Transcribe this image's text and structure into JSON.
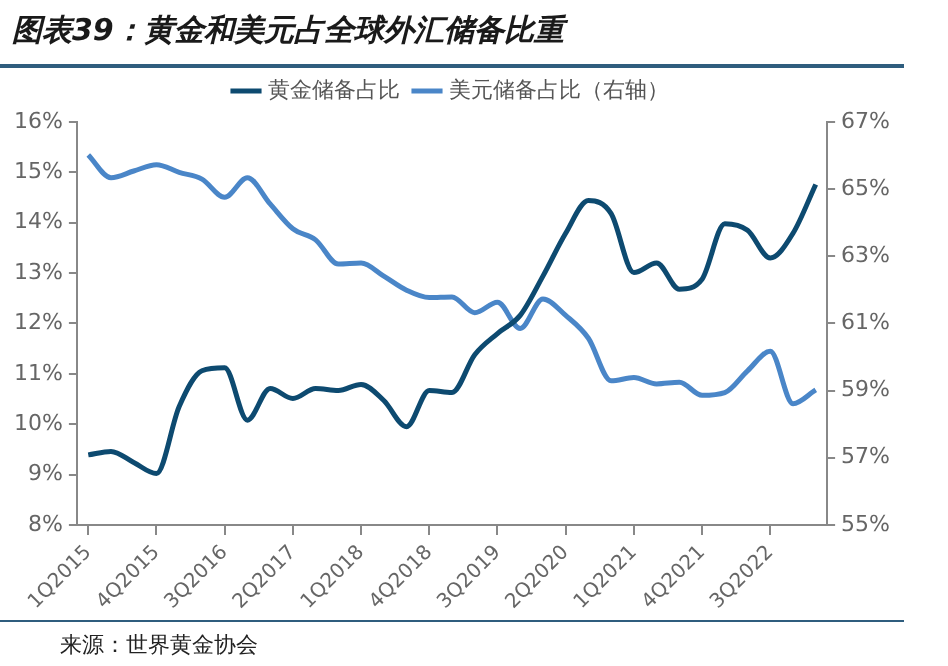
{
  "chart_data": {
    "type": "line",
    "title": "图表39：黄金和美元占全球外汇储备比重",
    "categories": [
      "1Q2015",
      null,
      null,
      "4Q2015",
      null,
      null,
      "3Q2016",
      null,
      null,
      "2Q2017",
      null,
      null,
      "1Q2018",
      null,
      null,
      "4Q2018",
      null,
      null,
      "3Q2019",
      null,
      null,
      "2Q2020",
      null,
      null,
      "1Q2021",
      null,
      null,
      "4Q2021",
      null,
      null,
      "3Q2022",
      null,
      null
    ],
    "series": [
      {
        "name": "黄金储备占比",
        "color": "#0d4a70",
        "values": [
          9.39,
          9.46,
          9.24,
          9.02,
          10.35,
          11.06,
          11.12,
          10.08,
          10.71,
          10.51,
          10.71,
          10.67,
          10.79,
          10.47,
          9.95,
          10.67,
          10.63,
          11.38,
          11.8,
          12.16,
          12.94,
          13.79,
          14.44,
          14.18,
          13.01,
          13.2,
          12.68,
          12.88,
          13.98,
          13.85,
          13.3,
          13.79,
          14.76
        ]
      },
      {
        "name": "美元储备占比（右轴）",
        "color": "#4a86c8",
        "axis": "y2",
        "values": [
          66.02,
          65.34,
          65.54,
          65.73,
          65.5,
          65.3,
          64.76,
          65.34,
          64.56,
          63.82,
          63.49,
          62.77,
          62.8,
          62.41,
          61.99,
          61.77,
          61.79,
          61.32,
          61.63,
          60.85,
          61.73,
          61.24,
          60.56,
          59.29,
          59.39,
          59.2,
          59.25,
          58.86,
          58.94,
          59.59,
          60.17,
          58.61,
          59.02
        ]
      }
    ],
    "ylim": [
      8,
      16
    ],
    "yticks": [
      {
        "value": 8,
        "label": "8%"
      },
      {
        "value": 9,
        "label": "9%"
      },
      {
        "value": 10,
        "label": "10%"
      },
      {
        "value": 11,
        "label": "11%"
      },
      {
        "value": 12,
        "label": "12%"
      },
      {
        "value": 13,
        "label": "13%"
      },
      {
        "value": 14,
        "label": "14%"
      },
      {
        "value": 15,
        "label": "15%"
      },
      {
        "value": 16,
        "label": "16%"
      }
    ],
    "y2lim": [
      55,
      67
    ],
    "y2ticks": [
      {
        "value": 55,
        "label": "55%"
      },
      {
        "value": 57,
        "label": "57%"
      },
      {
        "value": 59,
        "label": "59%"
      },
      {
        "value": 61,
        "label": "61%"
      },
      {
        "value": 63,
        "label": "63%"
      },
      {
        "value": 65,
        "label": "65%"
      },
      {
        "value": 67,
        "label": "67%"
      }
    ],
    "legend": "top",
    "grid": false,
    "marker": "none",
    "line_style": "solid",
    "annotations": [
      "来源：世界黄金协会"
    ]
  }
}
